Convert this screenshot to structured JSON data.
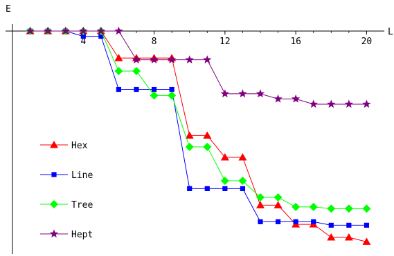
{
  "chart_data": {
    "type": "line",
    "xlabel": "L",
    "ylabel": "E",
    "xlim": [
      0,
      21
    ],
    "ylim": [
      -12.7,
      0
    ],
    "xticks": [
      4,
      8,
      12,
      16,
      20
    ],
    "x": [
      1,
      2,
      3,
      4,
      5,
      6,
      7,
      8,
      9,
      10,
      11,
      12,
      13,
      14,
      15,
      16,
      17,
      18,
      19,
      20
    ],
    "legend_position": "left",
    "series": [
      {
        "name": "Hex",
        "color": "#ff0000",
        "marker": "triangle",
        "values": [
          0,
          0,
          0,
          0,
          0,
          -1.55,
          -1.55,
          -1.55,
          -1.55,
          -6.0,
          -6.0,
          -7.25,
          -7.25,
          -10.0,
          -10.0,
          -11.1,
          -11.1,
          -11.85,
          -11.85,
          -12.1
        ]
      },
      {
        "name": "Line",
        "color": "#0000ff",
        "marker": "square",
        "values": [
          0,
          0,
          0,
          -0.3,
          -0.3,
          -3.35,
          -3.35,
          -3.35,
          -3.35,
          -9.05,
          -9.05,
          -9.05,
          -9.05,
          -10.95,
          -10.95,
          -10.95,
          -10.95,
          -11.15,
          -11.15,
          -11.15
        ]
      },
      {
        "name": "Tree",
        "color": "#00ff00",
        "marker": "diamond",
        "values": [
          0,
          0,
          0,
          0,
          0,
          -2.3,
          -2.3,
          -3.7,
          -3.7,
          -6.65,
          -6.65,
          -8.6,
          -8.6,
          -9.55,
          -9.55,
          -10.1,
          -10.1,
          -10.2,
          -10.2,
          -10.2
        ]
      },
      {
        "name": "Hept",
        "color": "#800080",
        "marker": "star",
        "values": [
          0,
          0,
          0,
          0,
          0,
          0,
          -1.65,
          -1.65,
          -1.65,
          -1.65,
          -1.65,
          -3.6,
          -3.6,
          -3.6,
          -3.9,
          -3.9,
          -4.2,
          -4.2,
          -4.2,
          -4.2
        ]
      }
    ]
  }
}
